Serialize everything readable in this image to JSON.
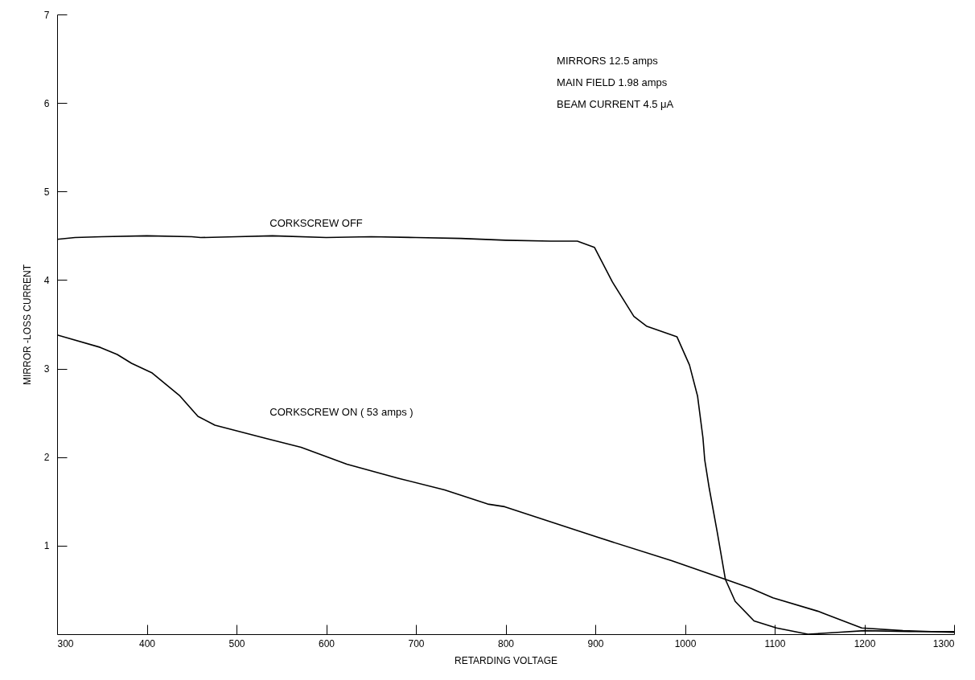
{
  "chart_data": {
    "type": "line",
    "xlabel": "RETARDING VOLTAGE",
    "ylabel": "MIRROR -LOSS CURRENT",
    "xlim": [
      300,
      1300
    ],
    "xticks": [
      300,
      400,
      500,
      600,
      700,
      800,
      900,
      1000,
      1100,
      1200,
      1300
    ],
    "ylim": [
      0,
      7
    ],
    "yticks": [
      1,
      2,
      3,
      4,
      5,
      6,
      7
    ],
    "grid": false,
    "line_style": "solid",
    "annotations": [
      "MIRRORS 12.5 amps",
      "MAIN FIELD 1.98 amps",
      "BEAM CURRENT 4.5 μA"
    ],
    "series": [
      {
        "name": "CORKSCREW OFF",
        "color": "#000000",
        "x": [
          300,
          320,
          350,
          400,
          450,
          460,
          500,
          540,
          600,
          650,
          700,
          750,
          800,
          850,
          880,
          899,
          919,
          943,
          957,
          991,
          1005,
          1014,
          1020,
          1022,
          1027,
          1036,
          1045,
          1056,
          1077,
          1102,
          1137,
          1170,
          1200,
          1250,
          1300
        ],
        "values": [
          4.46,
          4.48,
          4.49,
          4.5,
          4.49,
          4.48,
          4.49,
          4.5,
          4.48,
          4.49,
          4.48,
          4.47,
          4.45,
          4.44,
          4.44,
          4.37,
          3.98,
          3.59,
          3.48,
          3.36,
          3.04,
          2.69,
          2.22,
          1.97,
          1.65,
          1.15,
          0.62,
          0.37,
          0.15,
          0.07,
          0.0,
          0.02,
          0.04,
          0.03,
          0.03
        ]
      },
      {
        "name": "CORKSCREW ON ( 53 amps )",
        "color": "#000000",
        "x": [
          300,
          348,
          367,
          383,
          406,
          437,
          457,
          476,
          533,
          572,
          623,
          681,
          732,
          780,
          799,
          901,
          985,
          1045,
          1073,
          1098,
          1148,
          1197,
          1243,
          1300
        ],
        "values": [
          3.38,
          3.24,
          3.16,
          3.06,
          2.95,
          2.69,
          2.46,
          2.36,
          2.21,
          2.11,
          1.92,
          1.76,
          1.63,
          1.47,
          1.44,
          1.1,
          0.83,
          0.62,
          0.52,
          0.41,
          0.26,
          0.07,
          0.04,
          0.02
        ]
      }
    ]
  }
}
